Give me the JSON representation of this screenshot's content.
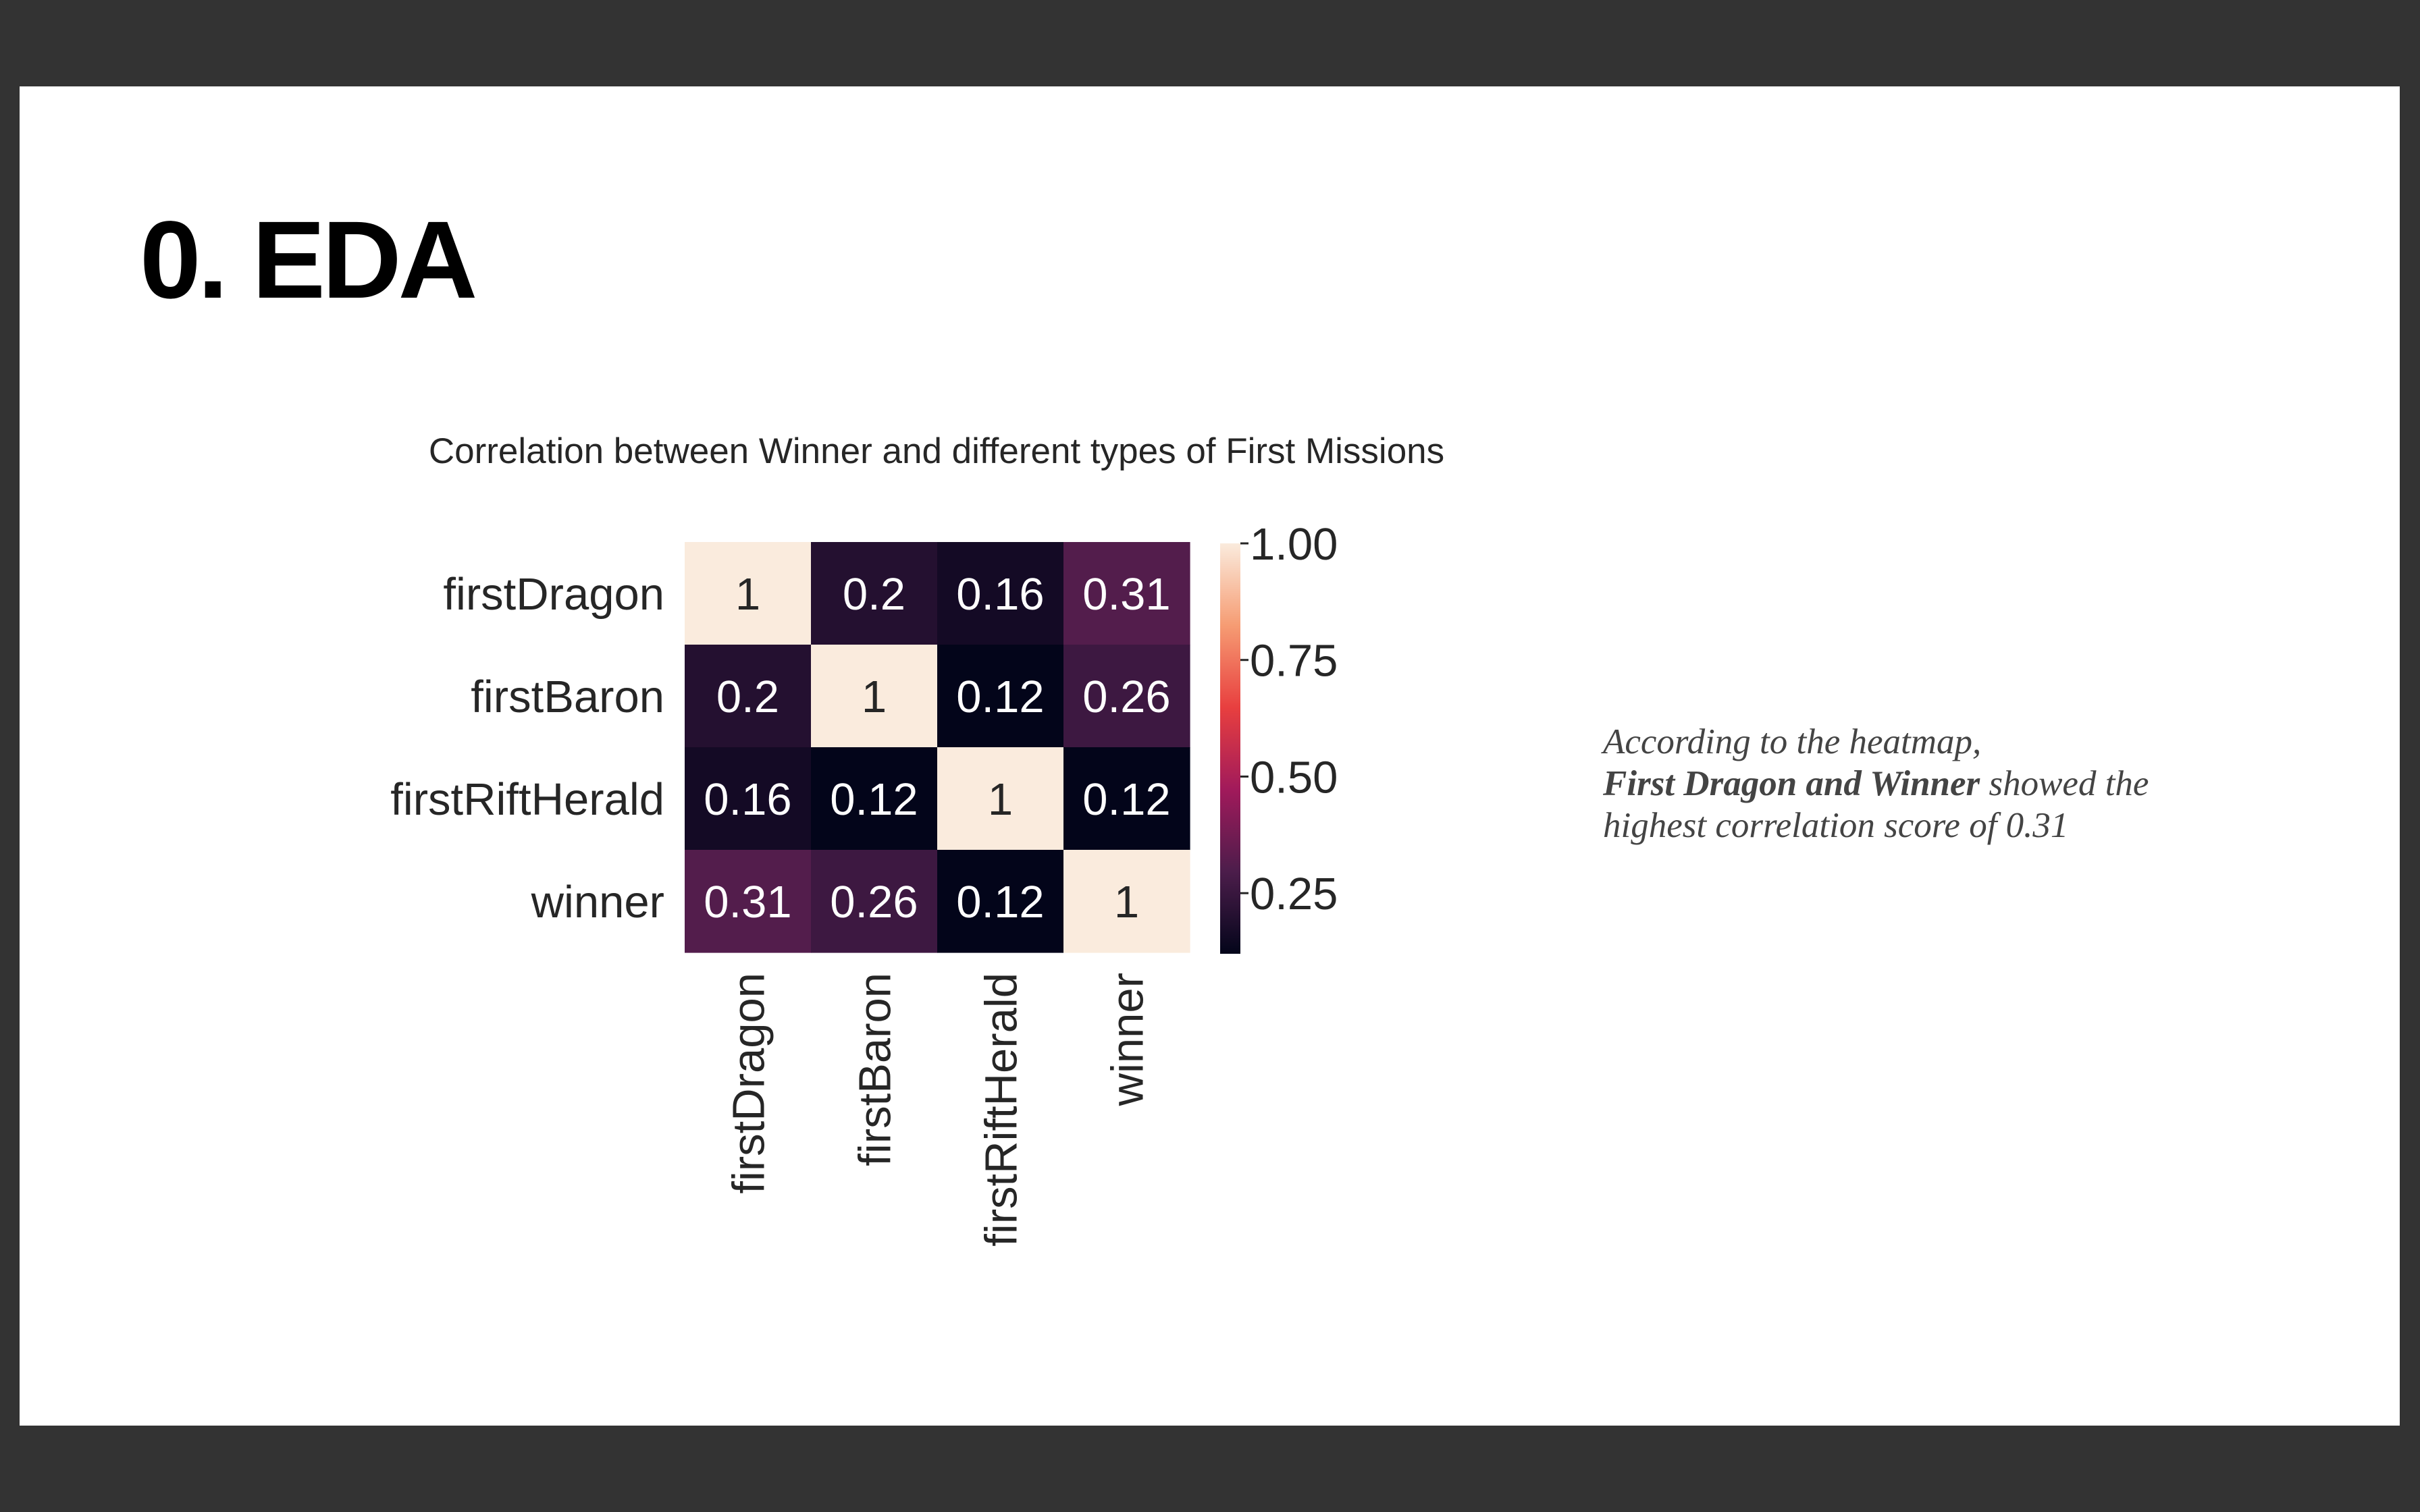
{
  "slide": {
    "title": "0. EDA",
    "caption": {
      "line1": "According to the heatmap,",
      "line2_bold": "First Dragon and Winner",
      "line2_rest": " showed the",
      "line3": "highest correlation score of 0.31"
    }
  },
  "chart_data": {
    "type": "heatmap",
    "title": "Correlation between Winner and different types of First Missions",
    "xlabel": "",
    "ylabel": "",
    "rows": [
      "firstDragon",
      "firstBaron",
      "firstRiftHerald",
      "winner"
    ],
    "columns": [
      "firstDragon",
      "firstBaron",
      "firstRiftHerald",
      "winner"
    ],
    "values": [
      [
        1,
        0.2,
        0.16,
        0.31
      ],
      [
        0.2,
        1,
        0.12,
        0.26
      ],
      [
        0.16,
        0.12,
        1,
        0.12
      ],
      [
        0.31,
        0.26,
        0.12,
        1
      ]
    ],
    "value_labels": [
      [
        "1",
        "0.2",
        "0.16",
        "0.31"
      ],
      [
        "0.2",
        "1",
        "0.12",
        "0.26"
      ],
      [
        "0.16",
        "0.12",
        "1",
        "0.12"
      ],
      [
        "0.31",
        "0.26",
        "0.12",
        "1"
      ]
    ],
    "colorbar": {
      "range": [
        0.12,
        1.0
      ],
      "ticks": [
        1.0,
        0.75,
        0.5,
        0.25
      ],
      "tick_labels": [
        "1.00",
        "0.75",
        "0.50",
        "0.25"
      ],
      "colormap": "rocket",
      "stops": [
        "#03051a",
        "#4c1d4b",
        "#a11a5b",
        "#e83f3f",
        "#f69c73",
        "#faebdd"
      ]
    },
    "annotation_text_colors": {
      "dark_cell": "#ffffff",
      "light_cell": "#262626"
    },
    "grid": false,
    "legend": "colorbar-right"
  }
}
